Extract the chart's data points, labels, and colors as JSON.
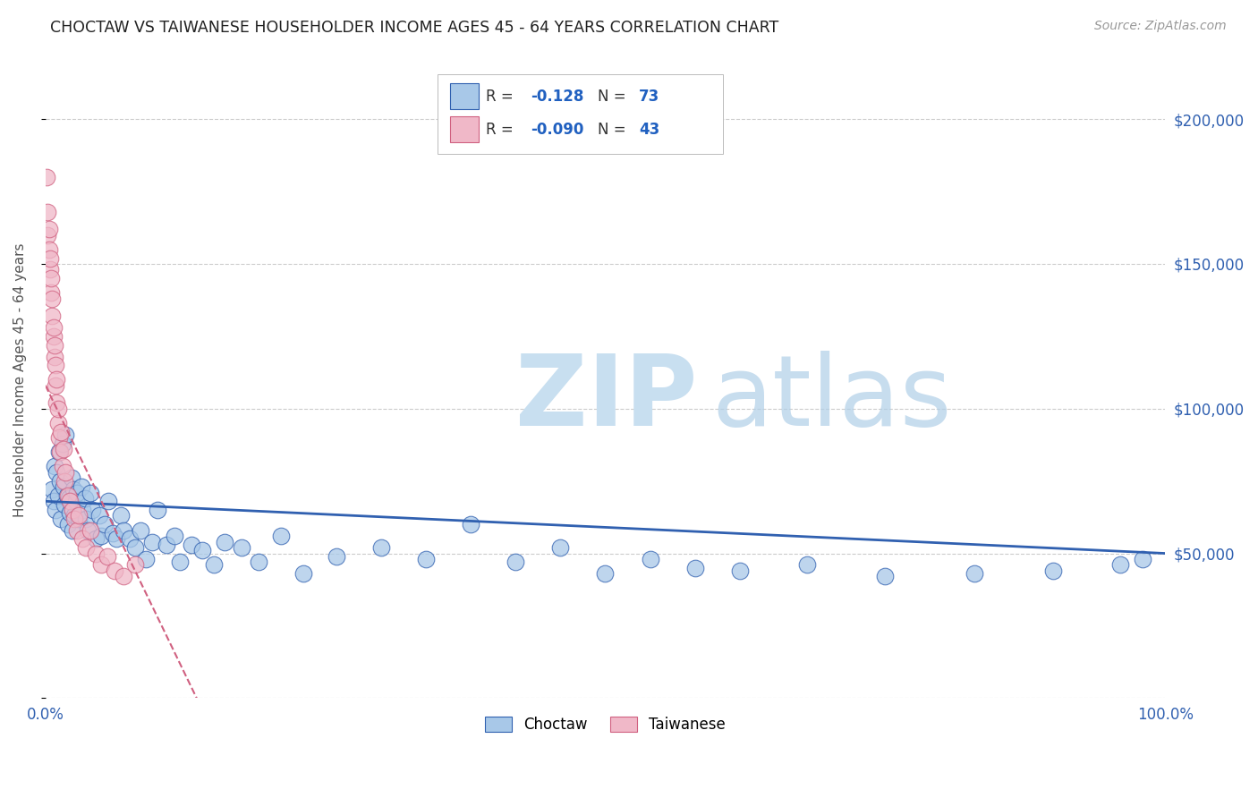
{
  "title": "CHOCTAW VS TAIWANESE HOUSEHOLDER INCOME AGES 45 - 64 YEARS CORRELATION CHART",
  "source": "Source: ZipAtlas.com",
  "ylabel": "Householder Income Ages 45 - 64 years",
  "xlim": [
    0.0,
    1.0
  ],
  "ylim": [
    0,
    220000
  ],
  "yticks": [
    0,
    50000,
    100000,
    150000,
    200000
  ],
  "ytick_labels": [
    "",
    "$50,000",
    "$100,000",
    "$150,000",
    "$200,000"
  ],
  "choctaw_color": "#a8c8e8",
  "taiwanese_color": "#f0b8c8",
  "choctaw_line_color": "#3060b0",
  "taiwanese_line_color": "#d06080",
  "grid_color": "#cccccc",
  "background_color": "#ffffff",
  "choctaw_x": [
    0.006,
    0.007,
    0.008,
    0.009,
    0.01,
    0.011,
    0.012,
    0.013,
    0.014,
    0.015,
    0.016,
    0.017,
    0.018,
    0.019,
    0.02,
    0.021,
    0.022,
    0.023,
    0.024,
    0.025,
    0.026,
    0.027,
    0.028,
    0.03,
    0.032,
    0.033,
    0.035,
    0.036,
    0.038,
    0.04,
    0.042,
    0.045,
    0.048,
    0.05,
    0.053,
    0.056,
    0.06,
    0.063,
    0.067,
    0.07,
    0.075,
    0.08,
    0.085,
    0.09,
    0.095,
    0.1,
    0.108,
    0.115,
    0.12,
    0.13,
    0.14,
    0.15,
    0.16,
    0.175,
    0.19,
    0.21,
    0.23,
    0.26,
    0.3,
    0.34,
    0.38,
    0.42,
    0.46,
    0.5,
    0.54,
    0.58,
    0.62,
    0.68,
    0.75,
    0.83,
    0.9,
    0.96,
    0.98
  ],
  "choctaw_y": [
    72000,
    68000,
    80000,
    65000,
    78000,
    70000,
    85000,
    75000,
    62000,
    88000,
    73000,
    67000,
    91000,
    70000,
    60000,
    69000,
    64000,
    76000,
    58000,
    72000,
    63000,
    68000,
    71000,
    62000,
    73000,
    65000,
    69000,
    62000,
    58000,
    71000,
    65000,
    55000,
    63000,
    56000,
    60000,
    68000,
    57000,
    55000,
    63000,
    58000,
    55000,
    52000,
    58000,
    48000,
    54000,
    65000,
    53000,
    56000,
    47000,
    53000,
    51000,
    46000,
    54000,
    52000,
    47000,
    56000,
    43000,
    49000,
    52000,
    48000,
    60000,
    47000,
    52000,
    43000,
    48000,
    45000,
    44000,
    46000,
    42000,
    43000,
    44000,
    46000,
    48000
  ],
  "taiwanese_x": [
    0.001,
    0.002,
    0.002,
    0.003,
    0.003,
    0.004,
    0.004,
    0.005,
    0.005,
    0.006,
    0.006,
    0.007,
    0.007,
    0.008,
    0.008,
    0.009,
    0.009,
    0.01,
    0.01,
    0.011,
    0.011,
    0.012,
    0.013,
    0.014,
    0.015,
    0.016,
    0.017,
    0.018,
    0.02,
    0.022,
    0.024,
    0.026,
    0.028,
    0.03,
    0.033,
    0.036,
    0.04,
    0.045,
    0.05,
    0.055,
    0.062,
    0.07,
    0.08
  ],
  "taiwanese_y": [
    180000,
    168000,
    160000,
    155000,
    162000,
    148000,
    152000,
    140000,
    145000,
    132000,
    138000,
    125000,
    128000,
    118000,
    122000,
    108000,
    115000,
    102000,
    110000,
    95000,
    100000,
    90000,
    85000,
    92000,
    80000,
    86000,
    75000,
    78000,
    70000,
    68000,
    65000,
    62000,
    58000,
    63000,
    55000,
    52000,
    58000,
    50000,
    46000,
    49000,
    44000,
    42000,
    46000
  ]
}
